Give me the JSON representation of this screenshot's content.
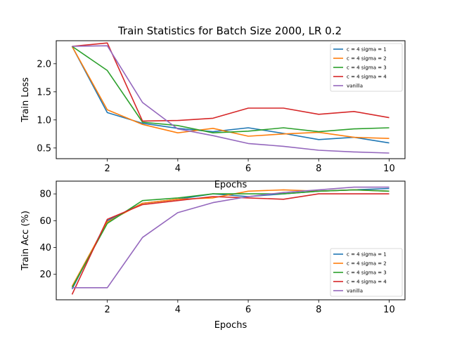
{
  "chart_data": [
    {
      "type": "line",
      "title": "Train Statistics for Batch Size 2000, LR 0.2",
      "xlabel": "Epochs",
      "ylabel": "Train Loss",
      "x": [
        1,
        2,
        3,
        4,
        5,
        6,
        7,
        8,
        9,
        10
      ],
      "xlim": [
        0.55,
        10.45
      ],
      "ylim": [
        0.31,
        2.41
      ],
      "xticks": [
        2,
        4,
        6,
        8,
        10
      ],
      "yticks": [
        0.5,
        1.0,
        1.5,
        2.0
      ],
      "ytick_labels": [
        "0.5",
        "1.0",
        "1.5",
        "2.0"
      ],
      "legend_position": "upper right",
      "grid": false,
      "series": [
        {
          "name": "c = 4 sigma = 1",
          "color": "#1f77b4",
          "values": [
            2.31,
            1.13,
            0.94,
            0.85,
            0.79,
            0.86,
            0.76,
            0.65,
            0.69,
            0.59
          ]
        },
        {
          "name": "c = 4 sigma = 2",
          "color": "#ff7f0e",
          "values": [
            2.31,
            1.18,
            0.92,
            0.77,
            0.85,
            0.71,
            0.75,
            0.78,
            0.69,
            0.67
          ]
        },
        {
          "name": "c = 4 sigma = 3",
          "color": "#2ca02c",
          "values": [
            2.31,
            1.88,
            0.96,
            0.9,
            0.77,
            0.8,
            0.86,
            0.79,
            0.84,
            0.86
          ]
        },
        {
          "name": "c = 4 sigma = 4",
          "color": "#d62728",
          "values": [
            2.31,
            2.37,
            0.98,
            0.99,
            1.03,
            1.21,
            1.21,
            1.1,
            1.15,
            1.04
          ]
        },
        {
          "name": "vanilla",
          "color": "#9467bd",
          "values": [
            2.31,
            2.32,
            1.31,
            0.84,
            0.72,
            0.58,
            0.53,
            0.46,
            0.43,
            0.41
          ]
        }
      ]
    },
    {
      "type": "line",
      "title": "",
      "xlabel": "Epochs",
      "ylabel": "Train Acc (%)",
      "x": [
        1,
        2,
        3,
        4,
        5,
        6,
        7,
        8,
        9,
        10
      ],
      "xlim": [
        0.55,
        10.45
      ],
      "ylim": [
        1.0,
        89.5
      ],
      "xticks": [
        2,
        4,
        6,
        8,
        10
      ],
      "yticks": [
        20,
        40,
        60,
        80
      ],
      "ytick_labels": [
        "20",
        "40",
        "60",
        "80"
      ],
      "legend_position": "lower right",
      "grid": false,
      "series": [
        {
          "name": "c = 4 sigma = 1",
          "color": "#1f77b4",
          "values": [
            9,
            60,
            73,
            76,
            80,
            78,
            80,
            82,
            83,
            84
          ]
        },
        {
          "name": "c = 4 sigma = 2",
          "color": "#ff7f0e",
          "values": [
            11,
            59,
            73,
            76,
            77,
            82,
            83,
            82,
            83,
            82
          ]
        },
        {
          "name": "c = 4 sigma = 3",
          "color": "#2ca02c",
          "values": [
            10,
            58,
            75,
            77,
            80,
            80,
            80,
            82,
            83,
            82
          ]
        },
        {
          "name": "c = 4 sigma = 4",
          "color": "#d62728",
          "values": [
            5,
            61,
            72,
            75,
            78,
            77,
            76,
            80,
            80,
            80
          ]
        },
        {
          "name": "vanilla",
          "color": "#9467bd",
          "values": [
            10,
            10,
            47.5,
            66,
            73.5,
            78,
            81,
            83,
            85,
            85
          ]
        }
      ]
    }
  ]
}
